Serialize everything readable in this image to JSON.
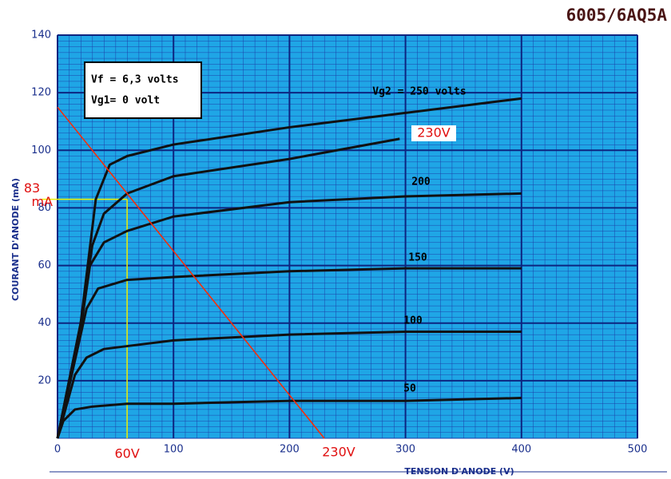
{
  "chart_data": {
    "type": "line",
    "title": "6005/6AQ5A",
    "xlabel": "TENSION D'ANODE (V)",
    "ylabel": "COURANT D'ANODE (mA)",
    "xlim": [
      0,
      500
    ],
    "ylim": [
      0,
      140
    ],
    "xticks": [
      0,
      100,
      200,
      300,
      400,
      500
    ],
    "yticks": [
      20,
      40,
      60,
      80,
      100,
      120,
      140
    ],
    "grid": true,
    "info": [
      "Vf = 6,3 volts",
      "Vg1= 0 volt"
    ],
    "series": [
      {
        "name": "Vg2 = 250 volts",
        "color": "#111111",
        "x": [
          0,
          20,
          33,
          45,
          60,
          100,
          200,
          300,
          400
        ],
        "values": [
          0,
          40,
          83,
          95,
          98,
          102,
          108,
          113,
          118
        ]
      },
      {
        "name": "230V",
        "color": "#111111",
        "x": [
          0,
          20,
          30,
          40,
          60,
          100,
          200,
          295
        ],
        "values": [
          0,
          40,
          67,
          78,
          85,
          91,
          97,
          104
        ]
      },
      {
        "name": "200",
        "color": "#111111",
        "x": [
          0,
          20,
          28,
          40,
          60,
          100,
          200,
          300,
          400
        ],
        "values": [
          0,
          38,
          60,
          68,
          72,
          77,
          82,
          84,
          85
        ]
      },
      {
        "name": "150",
        "color": "#111111",
        "x": [
          0,
          20,
          25,
          35,
          60,
          100,
          200,
          300,
          400
        ],
        "values": [
          0,
          36,
          45,
          52,
          55,
          56,
          58,
          59,
          59
        ]
      },
      {
        "name": "100",
        "color": "#111111",
        "x": [
          0,
          15,
          25,
          40,
          60,
          100,
          200,
          300,
          400
        ],
        "values": [
          0,
          22,
          28,
          31,
          32,
          34,
          36,
          37,
          37
        ]
      },
      {
        "name": "50",
        "color": "#111111",
        "x": [
          0,
          5,
          15,
          30,
          60,
          100,
          200,
          300,
          400
        ],
        "values": [
          0,
          6,
          10,
          11,
          12,
          12,
          13,
          13,
          14
        ]
      },
      {
        "name": "230V",
        "color": "#ff2a00",
        "x": [
          0,
          230
        ],
        "values": [
          115,
          0
        ]
      }
    ],
    "operating_point": {
      "x": 60,
      "y": 83,
      "x_label": "60V",
      "y_label": [
        "83",
        "mA"
      ],
      "color": "#f0f000"
    }
  }
}
